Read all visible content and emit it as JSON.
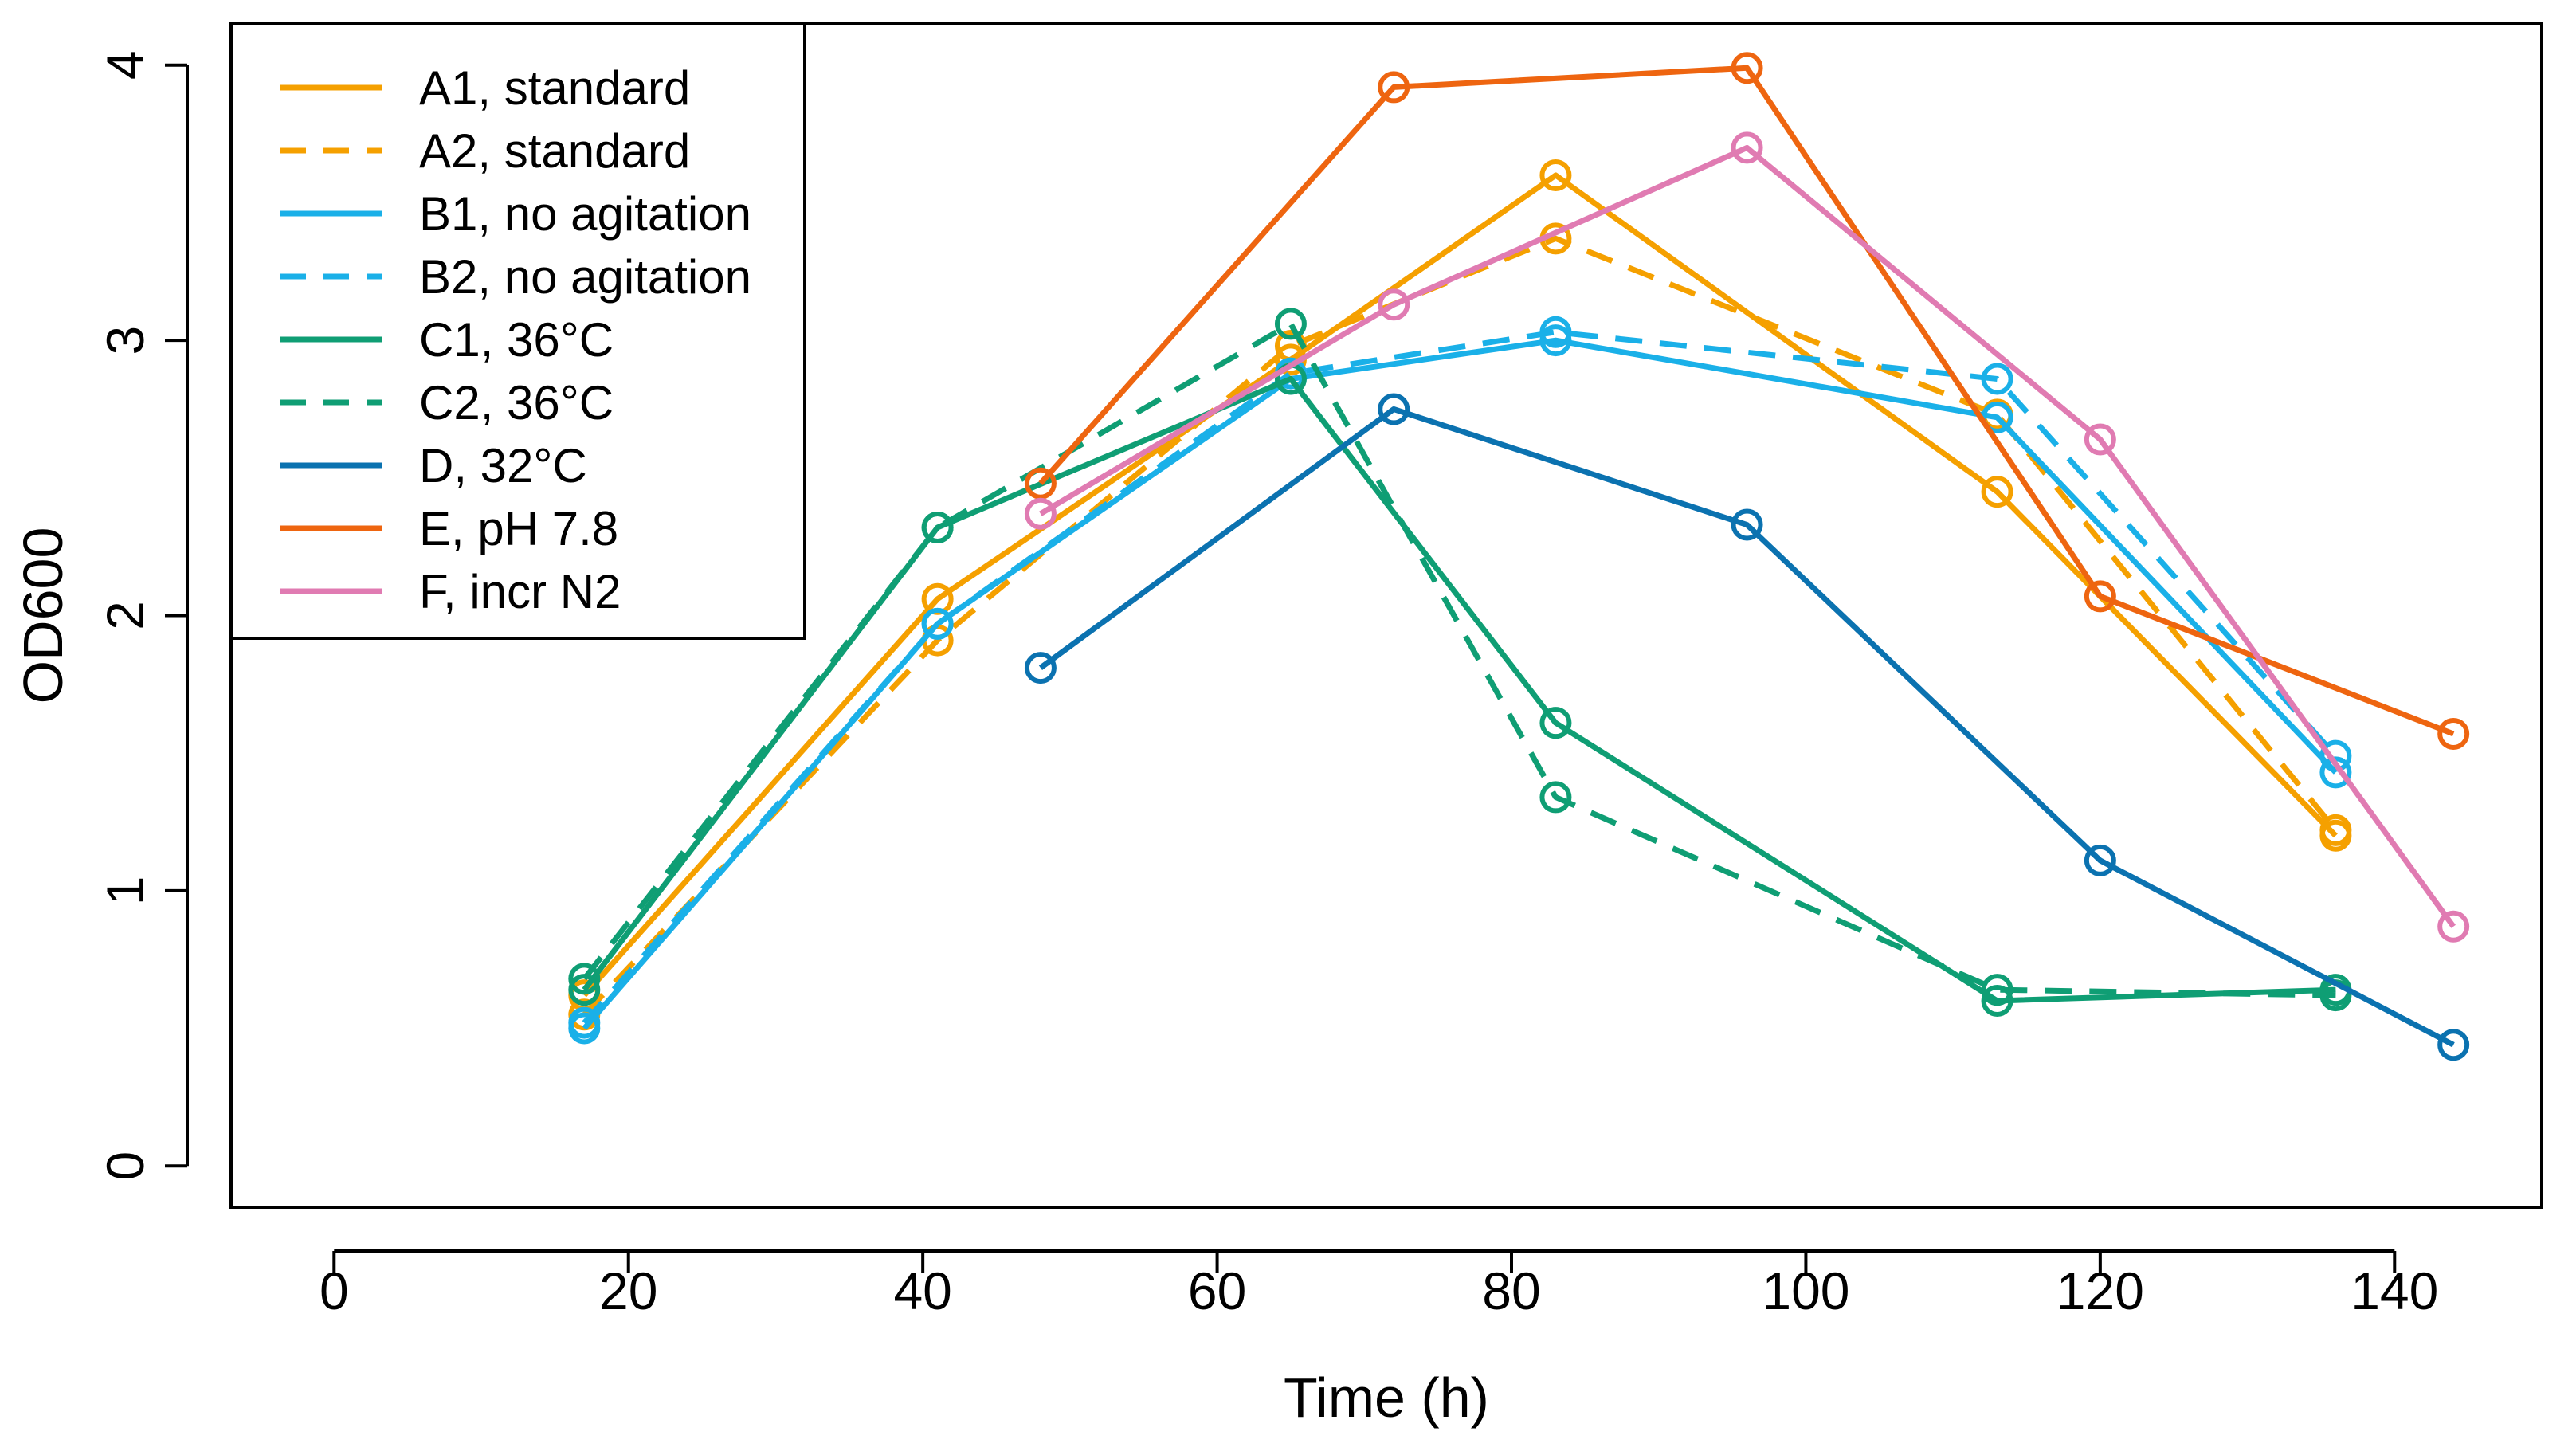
{
  "chart_data": {
    "type": "line",
    "title": "",
    "xlabel": "Time (h)",
    "ylabel": "OD600",
    "xlim": [
      -7,
      150
    ],
    "ylim": [
      -0.15,
      4.15
    ],
    "xticks": [
      0,
      20,
      40,
      60,
      80,
      100,
      120,
      140
    ],
    "yticks": [
      0,
      1,
      2,
      3,
      4
    ],
    "legend_position": "top-left",
    "series": [
      {
        "name": "A1, standard",
        "color": "#F5A000",
        "dash": "solid",
        "x": [
          17,
          41,
          65,
          83,
          113,
          136
        ],
        "y": [
          0.62,
          2.06,
          2.93,
          3.6,
          2.45,
          1.2
        ]
      },
      {
        "name": "A2, standard",
        "color": "#F5A000",
        "dash": "dashed",
        "x": [
          17,
          41,
          65,
          83,
          113,
          136
        ],
        "y": [
          0.55,
          1.91,
          2.98,
          3.37,
          2.73,
          1.22
        ]
      },
      {
        "name": "B1, no agitation",
        "color": "#1AB0E8",
        "dash": "solid",
        "x": [
          17,
          41,
          65,
          83,
          113,
          136
        ],
        "y": [
          0.5,
          1.97,
          2.86,
          3.0,
          2.72,
          1.43
        ]
      },
      {
        "name": "B2, no agitation",
        "color": "#1AB0E8",
        "dash": "dashed",
        "x": [
          17,
          41,
          65,
          83,
          113,
          136
        ],
        "y": [
          0.52,
          1.97,
          2.88,
          3.03,
          2.86,
          1.49
        ]
      },
      {
        "name": "C1, 36°C",
        "color": "#0F9E74",
        "dash": "solid",
        "x": [
          17,
          41,
          65,
          83,
          113,
          136
        ],
        "y": [
          0.64,
          2.32,
          2.86,
          1.61,
          0.6,
          0.64
        ]
      },
      {
        "name": "C2, 36°C",
        "color": "#0F9E74",
        "dash": "dashed",
        "x": [
          17,
          41,
          65,
          83,
          113,
          136
        ],
        "y": [
          0.68,
          2.32,
          3.06,
          1.34,
          0.64,
          0.62
        ]
      },
      {
        "name": "D, 32°C",
        "color": "#0B72B0",
        "dash": "solid",
        "x": [
          48,
          72,
          96,
          120,
          144
        ],
        "y": [
          1.81,
          2.75,
          2.33,
          1.11,
          0.44
        ]
      },
      {
        "name": "E, pH 7.8",
        "color": "#EE6510",
        "dash": "solid",
        "x": [
          48,
          72,
          96,
          120,
          144
        ],
        "y": [
          2.48,
          3.92,
          3.99,
          2.07,
          1.57
        ]
      },
      {
        "name": "F, incr N2",
        "color": "#E07BB2",
        "dash": "solid",
        "x": [
          48,
          72,
          96,
          120,
          144
        ],
        "y": [
          2.37,
          3.13,
          3.7,
          2.64,
          0.87
        ]
      }
    ]
  }
}
